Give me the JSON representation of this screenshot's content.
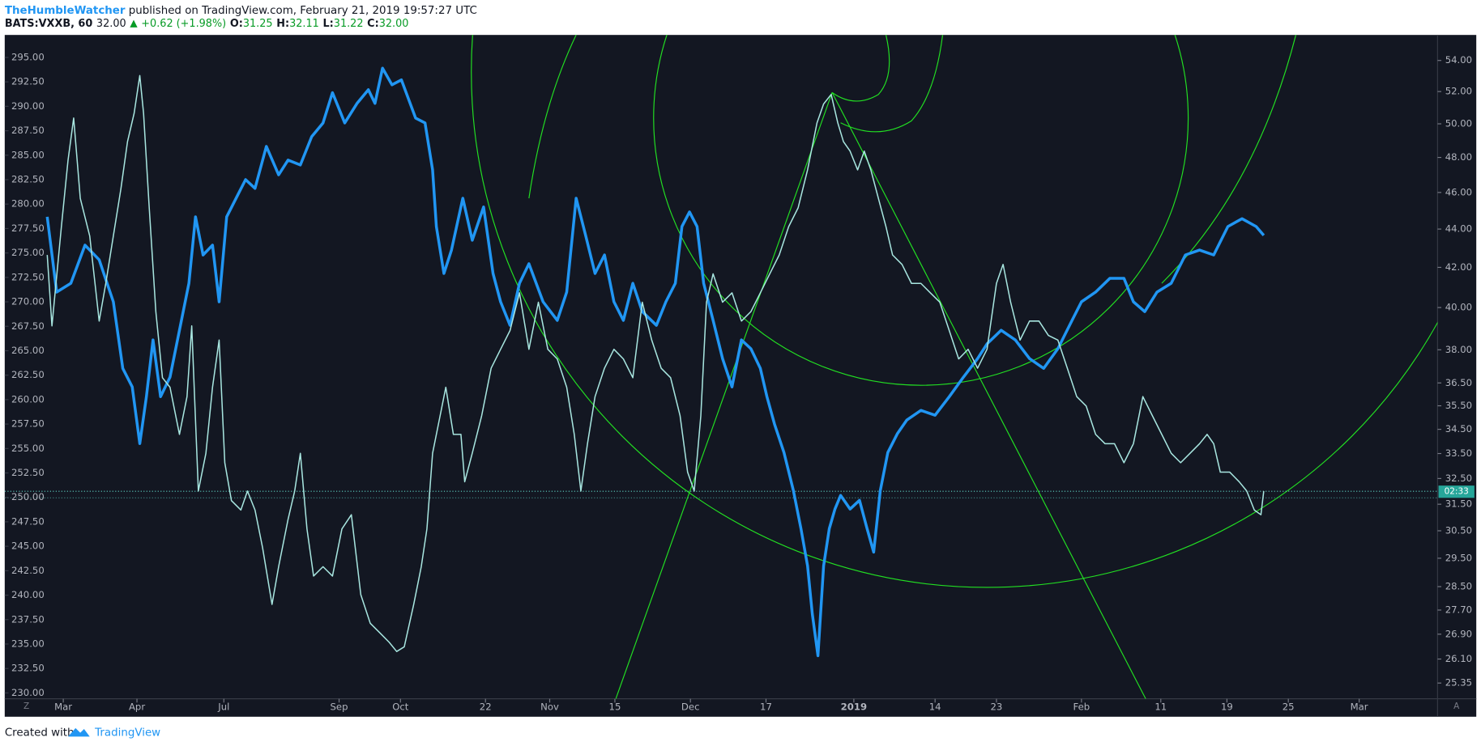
{
  "header": {
    "author": "TheHumbleWatcher",
    "published": " published on TradingView.com, February 21, 2019 19:57:27 UTC"
  },
  "legend": {
    "symbol": "BATS:VXXB, 60",
    "last": "32.00",
    "change": "+0.62 (+1.98%)",
    "o_label": "O:",
    "o": "31.25",
    "h_label": "H:",
    "h": "32.11",
    "l_label": "L:",
    "l": "31.22",
    "c_label": "C:",
    "c": "32.00"
  },
  "price_tag": "02:33",
  "scale_buttons": [
    "Z",
    "A"
  ],
  "footer": {
    "created": "Created with",
    "brand": "TradingView"
  },
  "chart_data": {
    "type": "line",
    "xlim": [
      5,
      1522
    ],
    "xticks": [
      {
        "value": 67,
        "label": "Mar"
      },
      {
        "value": 145,
        "label": "Apr"
      },
      {
        "value": 237,
        "label": "Jul"
      },
      {
        "value": 359,
        "label": "Sep"
      },
      {
        "value": 424,
        "label": "Oct"
      },
      {
        "value": 514,
        "label": "22"
      },
      {
        "value": 582,
        "label": "Nov"
      },
      {
        "value": 651,
        "label": "15"
      },
      {
        "value": 731,
        "label": "Dec"
      },
      {
        "value": 811,
        "label": "17"
      },
      {
        "value": 904,
        "label": "2019"
      },
      {
        "value": 990,
        "label": "14"
      },
      {
        "value": 1055,
        "label": "23"
      },
      {
        "value": 1145,
        "label": "Feb"
      },
      {
        "value": 1229,
        "label": "11"
      },
      {
        "value": 1299,
        "label": "19"
      },
      {
        "value": 1364,
        "label": "25"
      },
      {
        "value": 1439,
        "label": "Mar"
      }
    ],
    "ylim": [
      229.4,
      297.3
    ],
    "yticks": [
      {
        "value": 230,
        "label": "230.00"
      },
      {
        "value": 232.5,
        "label": "232.50"
      },
      {
        "value": 235,
        "label": "235.00"
      },
      {
        "value": 237.5,
        "label": "237.50"
      },
      {
        "value": 240,
        "label": "240.00"
      },
      {
        "value": 242.5,
        "label": "242.50"
      },
      {
        "value": 245,
        "label": "245.00"
      },
      {
        "value": 247.5,
        "label": "247.50"
      },
      {
        "value": 250,
        "label": "250.00"
      },
      {
        "value": 252.5,
        "label": "252.50"
      },
      {
        "value": 255,
        "label": "255.00"
      },
      {
        "value": 257.5,
        "label": "257.50"
      },
      {
        "value": 260,
        "label": "260.00"
      },
      {
        "value": 262.5,
        "label": "262.50"
      },
      {
        "value": 265,
        "label": "265.00"
      },
      {
        "value": 267.5,
        "label": "267.50"
      },
      {
        "value": 270,
        "label": "270.00"
      },
      {
        "value": 272.5,
        "label": "272.50"
      },
      {
        "value": 275,
        "label": "275.00"
      },
      {
        "value": 277.5,
        "label": "277.50"
      },
      {
        "value": 280,
        "label": "280.00"
      },
      {
        "value": 282.5,
        "label": "282.50"
      },
      {
        "value": 285,
        "label": "285.00"
      },
      {
        "value": 287.5,
        "label": "287.50"
      },
      {
        "value": 290,
        "label": "290.00"
      },
      {
        "value": 292.5,
        "label": "292.50"
      },
      {
        "value": 295,
        "label": "295.00"
      }
    ],
    "y2lim": [
      24.87,
      55.7
    ],
    "y2log": true,
    "y2ticks": [
      {
        "value": 25.35,
        "label": "25.35"
      },
      {
        "value": 26.1,
        "label": "26.10"
      },
      {
        "value": 26.9,
        "label": "26.90"
      },
      {
        "value": 27.7,
        "label": "27.70"
      },
      {
        "value": 28.5,
        "label": "28.50"
      },
      {
        "value": 29.5,
        "label": "29.50"
      },
      {
        "value": 30.5,
        "label": "30.50"
      },
      {
        "value": 31.5,
        "label": "31.50"
      },
      {
        "value": 32.5,
        "label": "32.50"
      },
      {
        "value": 33.5,
        "label": "33.50"
      },
      {
        "value": 34.5,
        "label": "34.50"
      },
      {
        "value": 35.5,
        "label": "35.50"
      },
      {
        "value": 36.5,
        "label": "36.50"
      },
      {
        "value": 38,
        "label": "38.00"
      },
      {
        "value": 40,
        "label": "40.00"
      },
      {
        "value": 42,
        "label": "42.00"
      },
      {
        "value": 44,
        "label": "44.00"
      },
      {
        "value": 46,
        "label": "46.00"
      },
      {
        "value": 48,
        "label": "48.00"
      },
      {
        "value": 50,
        "label": "50.00"
      },
      {
        "value": 52,
        "label": "52.00"
      },
      {
        "value": 54,
        "label": "54.00"
      }
    ],
    "last_price": 32.0,
    "series": [
      {
        "color": "#2196f3",
        "width": 3,
        "x": [
          50,
          60,
          75,
          90,
          105,
          120,
          130,
          140,
          148,
          155,
          162,
          170,
          180,
          190,
          200,
          207,
          215,
          225,
          232,
          240,
          250,
          260,
          270,
          282,
          295,
          305,
          318,
          330,
          342,
          352,
          365,
          378,
          390,
          397,
          405,
          415,
          425,
          440,
          450,
          458,
          462,
          470,
          478,
          490,
          500,
          512,
          522,
          530,
          540,
          550,
          560,
          575,
          590,
          600,
          610,
          620,
          630,
          640,
          650,
          660,
          670,
          680,
          695,
          705,
          715,
          722,
          730,
          738,
          745,
          755,
          765,
          775,
          785,
          795,
          805,
          812,
          820,
          830,
          840,
          848,
          855,
          860,
          866,
          872,
          878,
          884,
          890,
          900,
          910,
          918,
          925,
          932,
          940,
          950,
          960,
          975,
          990,
          1005,
          1020,
          1035,
          1045,
          1060,
          1075,
          1090,
          1105,
          1120,
          1135,
          1145,
          1160,
          1175,
          1190,
          1200,
          1212,
          1225,
          1240,
          1255,
          1270,
          1285,
          1300,
          1315,
          1330,
          1338
        ],
        "values": [
          278.7,
          271.0,
          271.9,
          275.8,
          274.3,
          270.0,
          263.2,
          261.3,
          255.5,
          260.3,
          266.1,
          260.3,
          262.3,
          267.1,
          271.9,
          278.7,
          274.8,
          275.8,
          270.0,
          278.7,
          280.6,
          282.5,
          281.6,
          285.9,
          283.0,
          284.5,
          284.0,
          286.9,
          288.3,
          291.4,
          288.3,
          290.3,
          291.7,
          290.3,
          293.9,
          292.2,
          292.7,
          288.8,
          288.3,
          283.5,
          277.7,
          272.9,
          275.3,
          280.6,
          276.3,
          279.7,
          272.9,
          270.0,
          267.6,
          271.9,
          273.9,
          270.0,
          268.1,
          271.0,
          280.6,
          276.8,
          272.9,
          274.8,
          270.0,
          268.1,
          271.9,
          269.0,
          267.6,
          270.0,
          271.9,
          277.7,
          279.2,
          277.7,
          271.9,
          268.1,
          264.2,
          261.3,
          266.1,
          265.2,
          263.2,
          260.3,
          257.5,
          254.6,
          250.7,
          246.8,
          243.0,
          238.1,
          233.8,
          243.0,
          246.8,
          248.8,
          250.2,
          248.8,
          249.7,
          246.8,
          244.4,
          250.7,
          254.6,
          256.5,
          257.9,
          258.9,
          258.4,
          260.3,
          262.3,
          264.2,
          265.7,
          267.1,
          266.1,
          264.2,
          263.2,
          265.2,
          268.1,
          270.0,
          271.0,
          272.4,
          272.4,
          270.0,
          269.0,
          271.0,
          271.9,
          274.8,
          275.3,
          274.8,
          277.7,
          278.5,
          277.7,
          276.8
        ]
      },
      {
        "name": "BATS:VXXB, 60",
        "color": "#a8e6e0",
        "width": 1.3,
        "axis": "y2",
        "x": [
          50,
          55,
          65,
          72,
          78,
          85,
          95,
          105,
          112,
          120,
          128,
          135,
          142,
          148,
          152,
          158,
          165,
          172,
          180,
          190,
          198,
          203,
          210,
          218,
          225,
          232,
          238,
          245,
          255,
          262,
          270,
          278,
          288,
          295,
          305,
          312,
          318,
          325,
          332,
          342,
          352,
          362,
          372,
          382,
          392,
          402,
          412,
          420,
          428,
          438,
          446,
          452,
          458,
          466,
          472,
          480,
          488,
          492,
          500,
          510,
          520,
          530,
          540,
          550,
          560,
          570,
          580,
          590,
          600,
          608,
          615,
          622,
          630,
          640,
          650,
          660,
          670,
          680,
          690,
          700,
          710,
          720,
          728,
          735,
          742,
          748,
          755,
          765,
          775,
          785,
          795,
          805,
          815,
          825,
          835,
          845,
          855,
          865,
          872,
          880,
          887,
          893,
          900,
          908,
          915,
          922,
          930,
          938,
          945,
          955,
          965,
          975,
          985,
          995,
          1005,
          1015,
          1025,
          1035,
          1045,
          1055,
          1062,
          1070,
          1080,
          1090,
          1100,
          1110,
          1120,
          1130,
          1140,
          1150,
          1160,
          1170,
          1180,
          1190,
          1200,
          1210,
          1220,
          1230,
          1240,
          1250,
          1260,
          1270,
          1278,
          1285,
          1292,
          1302,
          1312,
          1320,
          1328,
          1335,
          1338
        ],
        "values": [
          42.64,
          39.12,
          44.13,
          47.82,
          50.35,
          45.67,
          43.63,
          39.35,
          41.19,
          43.63,
          46.2,
          48.93,
          50.64,
          53.02,
          50.64,
          45.15,
          39.8,
          36.73,
          36.31,
          34.29,
          35.9,
          39.12,
          32.01,
          33.51,
          36.31,
          38.45,
          33.13,
          31.64,
          31.28,
          32.01,
          31.28,
          29.88,
          27.89,
          29.2,
          30.93,
          32.01,
          33.51,
          30.57,
          28.87,
          29.2,
          28.87,
          30.57,
          31.1,
          28.22,
          27.26,
          26.95,
          26.64,
          26.34,
          26.49,
          27.89,
          29.2,
          30.57,
          33.51,
          35.08,
          36.31,
          34.29,
          34.29,
          32.37,
          33.51,
          35.08,
          37.16,
          38.02,
          38.9,
          40.72,
          38.02,
          40.26,
          38.02,
          37.58,
          36.31,
          34.29,
          32.01,
          33.9,
          35.9,
          37.16,
          38.02,
          37.58,
          36.73,
          40.26,
          38.45,
          37.16,
          36.73,
          35.08,
          32.75,
          32.01,
          35.08,
          40.26,
          41.67,
          40.26,
          40.72,
          39.35,
          39.8,
          40.72,
          41.67,
          42.64,
          44.13,
          45.15,
          47.28,
          50.06,
          51.22,
          51.82,
          50.06,
          48.93,
          48.37,
          47.28,
          48.37,
          47.28,
          45.67,
          44.13,
          42.64,
          42.15,
          41.19,
          41.19,
          40.72,
          40.26,
          38.9,
          37.58,
          38.02,
          37.16,
          38.02,
          41.19,
          42.15,
          40.26,
          38.45,
          39.35,
          39.35,
          38.67,
          38.45,
          37.16,
          35.9,
          35.49,
          34.29,
          33.9,
          33.9,
          33.13,
          33.9,
          35.9,
          35.08,
          34.29,
          33.51,
          33.13,
          33.51,
          33.9,
          34.29,
          33.9,
          32.75,
          32.75,
          32.37,
          32.01,
          31.28,
          31.1,
          32.01
        ]
      }
    ]
  }
}
